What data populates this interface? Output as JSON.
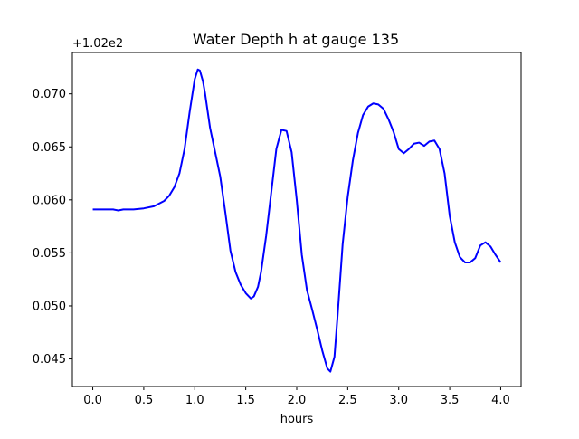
{
  "chart_data": {
    "type": "line",
    "title": "Water Depth h at gauge 135",
    "xlabel": "hours",
    "ylabel": "",
    "y_offset_text": "+1.02e2",
    "xlim": [
      -0.2,
      4.2
    ],
    "ylim": [
      0.0424,
      0.0739
    ],
    "x_ticks": [
      0.0,
      0.5,
      1.0,
      1.5,
      2.0,
      2.5,
      3.0,
      3.5,
      4.0
    ],
    "x_tick_labels": [
      "0.0",
      "0.5",
      "1.0",
      "1.5",
      "2.0",
      "2.5",
      "3.0",
      "3.5",
      "4.0"
    ],
    "y_ticks": [
      0.045,
      0.05,
      0.055,
      0.06,
      0.065,
      0.07
    ],
    "y_tick_labels": [
      "0.045",
      "0.050",
      "0.055",
      "0.060",
      "0.065",
      "0.070"
    ],
    "grid": false,
    "legend": "none",
    "series": [
      {
        "color": "#0000ff",
        "x": [
          0.0,
          0.1,
          0.2,
          0.25,
          0.3,
          0.4,
          0.5,
          0.6,
          0.7,
          0.75,
          0.8,
          0.85,
          0.9,
          0.95,
          1.0,
          1.03,
          1.05,
          1.08,
          1.1,
          1.15,
          1.2,
          1.25,
          1.3,
          1.35,
          1.4,
          1.45,
          1.5,
          1.55,
          1.58,
          1.62,
          1.65,
          1.7,
          1.75,
          1.8,
          1.85,
          1.9,
          1.95,
          2.0,
          2.05,
          2.1,
          2.15,
          2.2,
          2.25,
          2.3,
          2.33,
          2.37,
          2.4,
          2.45,
          2.5,
          2.55,
          2.6,
          2.65,
          2.7,
          2.75,
          2.8,
          2.85,
          2.9,
          2.95,
          3.0,
          3.05,
          3.1,
          3.15,
          3.2,
          3.25,
          3.3,
          3.35,
          3.4,
          3.45,
          3.5,
          3.55,
          3.6,
          3.65,
          3.7,
          3.75,
          3.8,
          3.85,
          3.9,
          3.95,
          4.0
        ],
        "y": [
          0.0591,
          0.0591,
          0.0591,
          0.059,
          0.0591,
          0.0591,
          0.0592,
          0.0594,
          0.0599,
          0.0604,
          0.0612,
          0.0625,
          0.0648,
          0.0683,
          0.0714,
          0.0723,
          0.0722,
          0.0712,
          0.0701,
          0.0668,
          0.0645,
          0.0622,
          0.0588,
          0.0552,
          0.0532,
          0.052,
          0.0512,
          0.0507,
          0.0509,
          0.0518,
          0.0532,
          0.0566,
          0.0607,
          0.0648,
          0.0666,
          0.0665,
          0.0645,
          0.06,
          0.0548,
          0.0515,
          0.0497,
          0.0478,
          0.0458,
          0.0441,
          0.0438,
          0.0452,
          0.049,
          0.0558,
          0.0603,
          0.0637,
          0.0663,
          0.068,
          0.0688,
          0.0691,
          0.069,
          0.0686,
          0.0676,
          0.0664,
          0.0648,
          0.0644,
          0.0648,
          0.0653,
          0.0654,
          0.0651,
          0.0655,
          0.0656,
          0.0648,
          0.0625,
          0.0585,
          0.056,
          0.0546,
          0.0541,
          0.0541,
          0.0545,
          0.0557,
          0.056,
          0.0556,
          0.0548,
          0.0541
        ]
      }
    ]
  }
}
